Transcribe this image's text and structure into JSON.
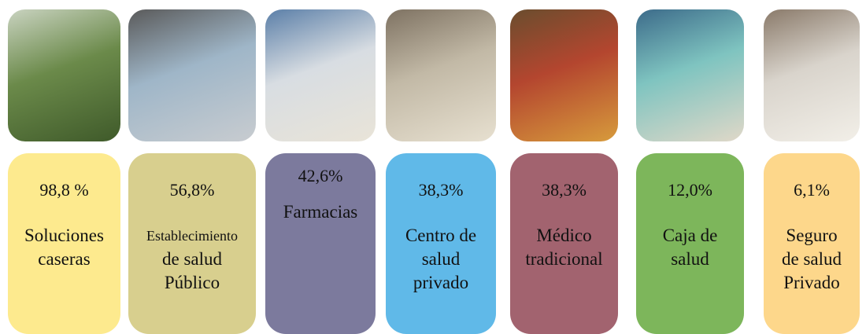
{
  "items": [
    {
      "percent": "98,8 %",
      "name": [
        "Soluciones",
        "caseras"
      ]
    },
    {
      "percent": "56,8%",
      "name": [
        "Establecimiento",
        "de salud",
        "Público"
      ]
    },
    {
      "percent": "42,6%",
      "name": [
        "Farmacias"
      ]
    },
    {
      "percent": "38,3%",
      "name": [
        "Centro de",
        "salud",
        "privado"
      ]
    },
    {
      "percent": "38,3%",
      "name": [
        "Médico",
        "tradicional"
      ]
    },
    {
      "percent": "12,0%",
      "name": [
        "Caja de",
        "salud"
      ]
    },
    {
      "percent": "6,1%",
      "name": [
        "Seguro",
        "de salud",
        "Privado"
      ]
    }
  ]
}
